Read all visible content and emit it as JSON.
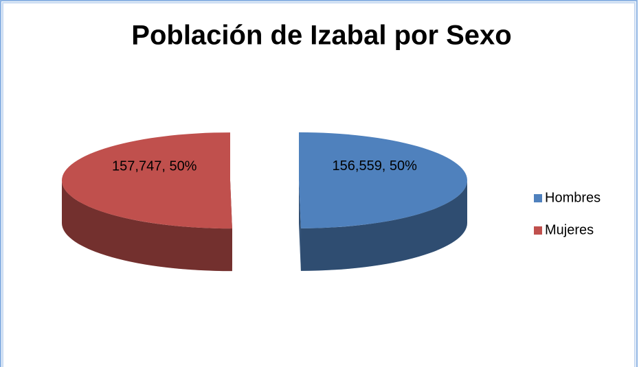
{
  "chart_data": {
    "type": "pie",
    "title": "Población de Izabal por Sexo",
    "categories": [
      "Hombres",
      "Mujeres"
    ],
    "values": [
      156559,
      157747
    ],
    "value_labels": [
      "156,559, 50%",
      "157,747, 50%"
    ],
    "colors": [
      "#4f81bd",
      "#c0504d"
    ],
    "legend": "right"
  }
}
